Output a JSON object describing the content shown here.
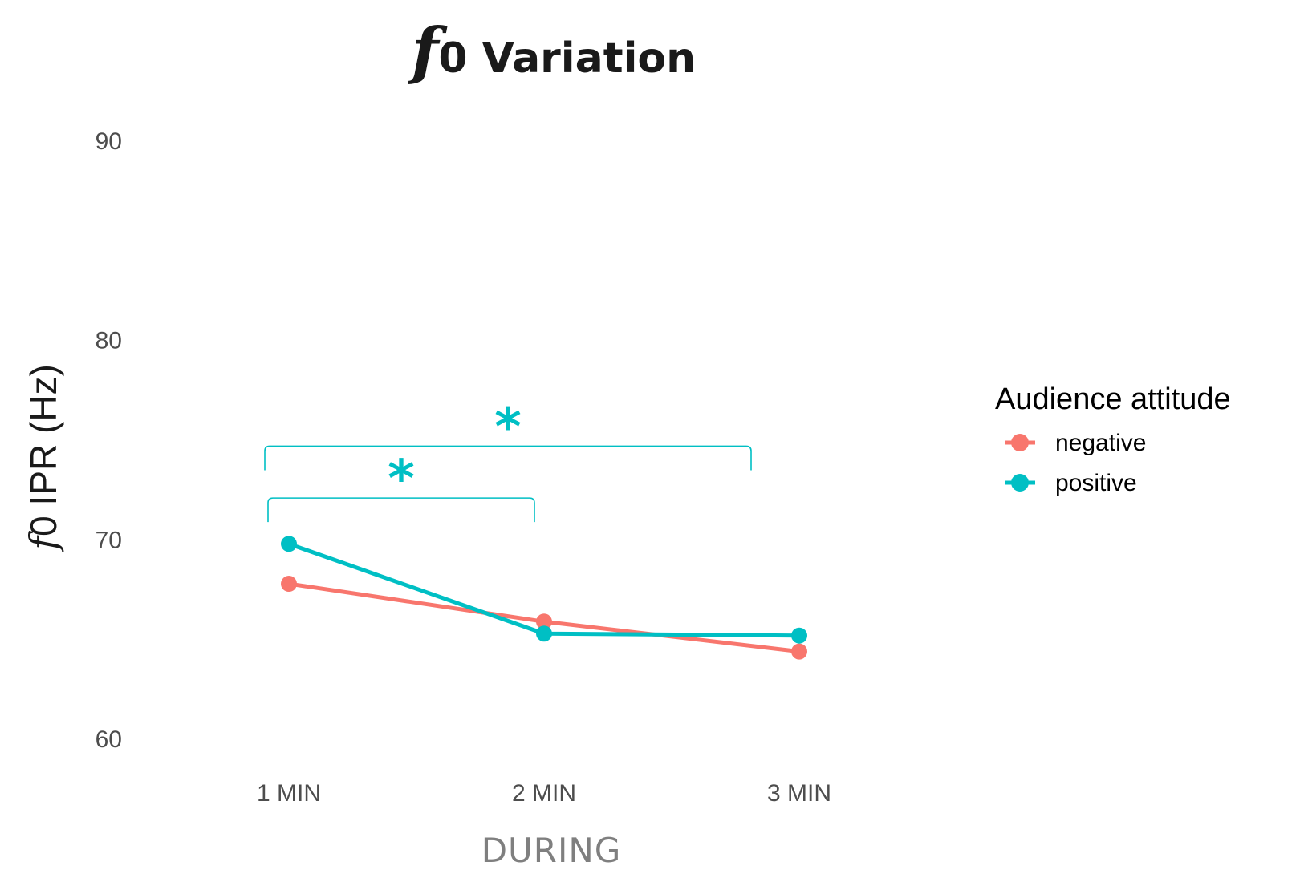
{
  "chart_data": {
    "type": "line",
    "title_italic": "f",
    "title": "0 Variation",
    "xlabel": "DURING",
    "ylabel_italic": "f",
    "ylabel": "0 IPR (Hz)",
    "categories": [
      "1 MIN",
      "2 MIN",
      "3 MIN"
    ],
    "ylim": [
      57,
      95
    ],
    "yticks": [
      60,
      70,
      80,
      90
    ],
    "grid": false,
    "legend": {
      "title": "Audience attitude",
      "placement": "right"
    },
    "series": [
      {
        "name": "negative",
        "color": "#F8766D",
        "values": [
          67.8,
          65.9,
          64.4
        ]
      },
      {
        "name": "positive",
        "color": "#00BFC4",
        "values": [
          69.8,
          65.3,
          65.2
        ]
      }
    ],
    "significance": {
      "color": "#00BFC4",
      "brackets": [
        {
          "from": "1 MIN",
          "to": "3 MIN",
          "y_top": 74.7,
          "label": "*"
        },
        {
          "from": "1 MIN",
          "to": "2 MIN",
          "y_top": 72.1,
          "label": "*"
        }
      ]
    }
  }
}
